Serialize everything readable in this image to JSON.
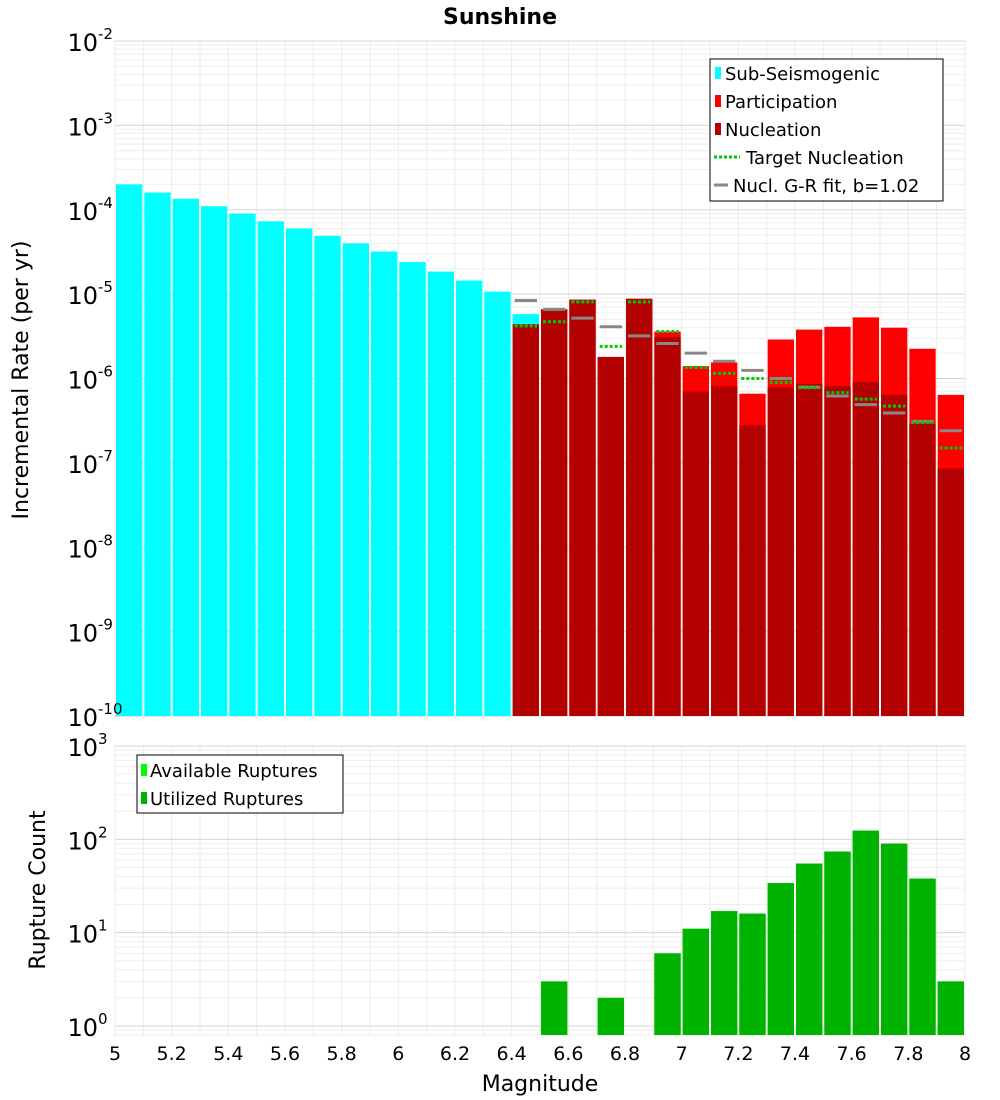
{
  "chart_data": [
    {
      "type": "bar",
      "title": "Sunshine",
      "xlabel": "",
      "ylabel": "Incremental Rate (per yr)",
      "yscale": "log",
      "xlim": [
        5,
        8
      ],
      "ylim": [
        1e-10,
        0.01
      ],
      "y_ticks": [
        {
          "base": "10",
          "exp": "-10"
        },
        {
          "base": "10",
          "exp": "-9"
        },
        {
          "base": "10",
          "exp": "-8"
        },
        {
          "base": "10",
          "exp": "-7"
        },
        {
          "base": "10",
          "exp": "-6"
        },
        {
          "base": "10",
          "exp": "-5"
        },
        {
          "base": "10",
          "exp": "-4"
        },
        {
          "base": "10",
          "exp": "-3"
        },
        {
          "base": "10",
          "exp": "-2"
        }
      ],
      "grid": true,
      "legend_position": "top-right",
      "bin_width": 0.1,
      "series": [
        {
          "name": "Sub-Seismogenic",
          "color": "#00ffff",
          "x": [
            5.05,
            5.15,
            5.25,
            5.35,
            5.45,
            5.55,
            5.65,
            5.75,
            5.85,
            5.95,
            6.05,
            6.15,
            6.25,
            6.35,
            6.45
          ],
          "values": [
            0.0002,
            0.00016,
            0.000135,
            0.00011,
            9e-05,
            7.3e-05,
            6e-05,
            4.9e-05,
            4e-05,
            3.2e-05,
            2.4e-05,
            1.85e-05,
            1.45e-05,
            1.07e-05,
            5.8e-06
          ]
        },
        {
          "name": "Participation",
          "color": "#ff0000",
          "x": [
            6.45,
            6.55,
            6.65,
            6.75,
            6.85,
            6.95,
            7.05,
            7.15,
            7.25,
            7.35,
            7.45,
            7.55,
            7.65,
            7.75,
            7.85,
            7.95
          ],
          "values": [
            4.4e-06,
            6.6e-06,
            8.6e-06,
            1.8e-06,
            8.8e-06,
            3.6e-06,
            1.4e-06,
            1.55e-06,
            6.6e-07,
            2.9e-06,
            3.8e-06,
            4.1e-06,
            5.3e-06,
            4e-06,
            2.25e-06,
            6.4e-07
          ]
        },
        {
          "name": "Nucleation",
          "color": "#b30000",
          "x": [
            6.45,
            6.55,
            6.65,
            6.75,
            6.85,
            6.95,
            7.05,
            7.15,
            7.25,
            7.35,
            7.45,
            7.55,
            7.65,
            7.75,
            7.85,
            7.95
          ],
          "values": [
            4.4e-06,
            6.6e-06,
            8.6e-06,
            1.8e-06,
            8.8e-06,
            3.1e-06,
            7e-07,
            8.1e-07,
            2.8e-07,
            7.8e-07,
            8.6e-07,
            8.1e-07,
            9.1e-07,
            6.4e-07,
            2.9e-07,
            8.6e-08
          ]
        },
        {
          "name": "Target Nucleation",
          "color": "#00cc00",
          "x": [
            6.45,
            6.55,
            6.65,
            6.75,
            6.85,
            6.95,
            7.05,
            7.15,
            7.25,
            7.35,
            7.45,
            7.55,
            7.65,
            7.75,
            7.85,
            7.95
          ],
          "values": [
            4.2e-06,
            4.7e-06,
            8.1e-06,
            2.4e-06,
            8.1e-06,
            3.6e-06,
            1.35e-06,
            1.15e-06,
            1e-06,
            9e-07,
            7.8e-07,
            6.8e-07,
            5.7e-07,
            4.7e-07,
            3e-07,
            1.5e-07
          ]
        },
        {
          "name": "Nucl. G-R fit, b=1.02",
          "color": "#888888",
          "x": [
            6.45,
            6.55,
            6.65,
            6.75,
            6.85,
            6.95,
            7.05,
            7.15,
            7.25,
            7.35,
            7.45,
            7.55,
            7.65,
            7.75,
            7.85,
            7.95
          ],
          "values": [
            8.4e-06,
            6.6e-06,
            5.2e-06,
            4.1e-06,
            3.2e-06,
            2.6e-06,
            2e-06,
            1.6e-06,
            1.25e-06,
            1e-06,
            7.9e-07,
            6.2e-07,
            4.9e-07,
            3.9e-07,
            3.1e-07,
            2.4e-07
          ]
        }
      ]
    },
    {
      "type": "bar",
      "title": "",
      "xlabel": "Magnitude",
      "ylabel": "Rupture Count",
      "yscale": "log",
      "xlim": [
        5,
        8
      ],
      "ylim": [
        0.8,
        1000
      ],
      "x_ticks": [
        "5",
        "5.2",
        "5.4",
        "5.6",
        "5.8",
        "6",
        "6.2",
        "6.4",
        "6.6",
        "6.8",
        "7",
        "7.2",
        "7.4",
        "7.6",
        "7.8",
        "8"
      ],
      "y_ticks": [
        {
          "base": "10",
          "exp": "0"
        },
        {
          "base": "10",
          "exp": "1"
        },
        {
          "base": "10",
          "exp": "2"
        },
        {
          "base": "10",
          "exp": "3"
        }
      ],
      "grid": true,
      "legend_position": "top-left",
      "bin_width": 0.1,
      "series": [
        {
          "name": "Available Ruptures",
          "color": "#00ff00",
          "x": [
            6.55,
            6.75,
            6.95,
            7.05,
            7.15,
            7.25,
            7.35,
            7.45,
            7.55,
            7.65,
            7.75,
            7.85,
            7.95
          ],
          "values": [
            3,
            2,
            6,
            11,
            17,
            16,
            34,
            55,
            74,
            124,
            90,
            38,
            3
          ]
        },
        {
          "name": "Utilized Ruptures",
          "color": "#00b300",
          "x": [
            6.55,
            6.75,
            6.95,
            7.05,
            7.15,
            7.25,
            7.35,
            7.45,
            7.55,
            7.65,
            7.75,
            7.85,
            7.95
          ],
          "values": [
            3,
            2,
            6,
            11,
            17,
            16,
            34,
            55,
            74,
            124,
            90,
            38,
            3
          ]
        }
      ]
    }
  ]
}
